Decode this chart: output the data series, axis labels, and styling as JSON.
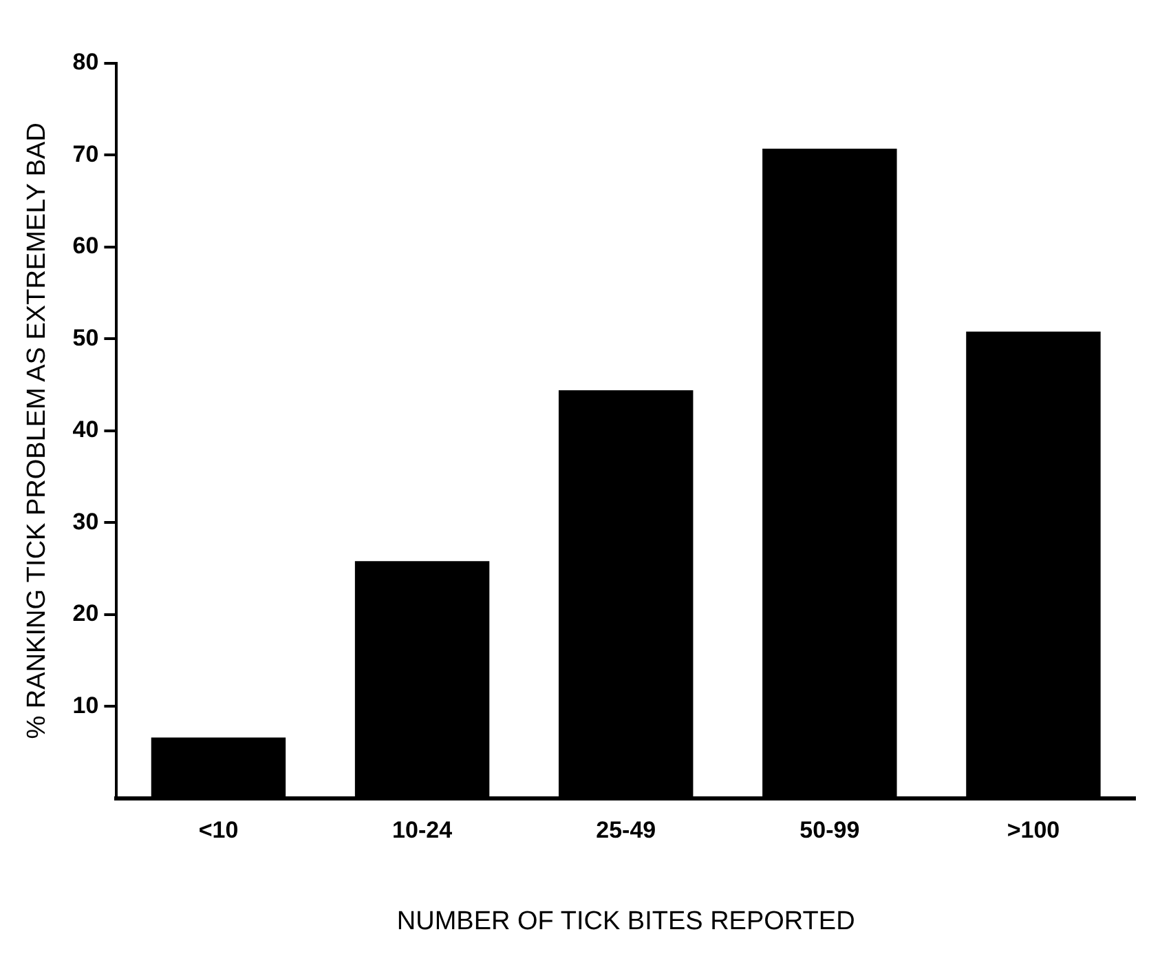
{
  "chart_data": {
    "type": "bar",
    "xlabel": "NUMBER OF TICK BITES REPORTED",
    "ylabel": "% RANKING TICK PROBLEM AS EXTREMELY BAD",
    "categories": [
      "<10",
      "10-24",
      "25-49",
      "50-99",
      ">100"
    ],
    "values": [
      6.6,
      25.8,
      44.4,
      70.7,
      50.8
    ],
    "color": "#000000",
    "ylim": [
      0,
      80
    ],
    "yticks": [
      10,
      20,
      30,
      40,
      50,
      60,
      70,
      80
    ],
    "grid": false,
    "legend": false
  }
}
